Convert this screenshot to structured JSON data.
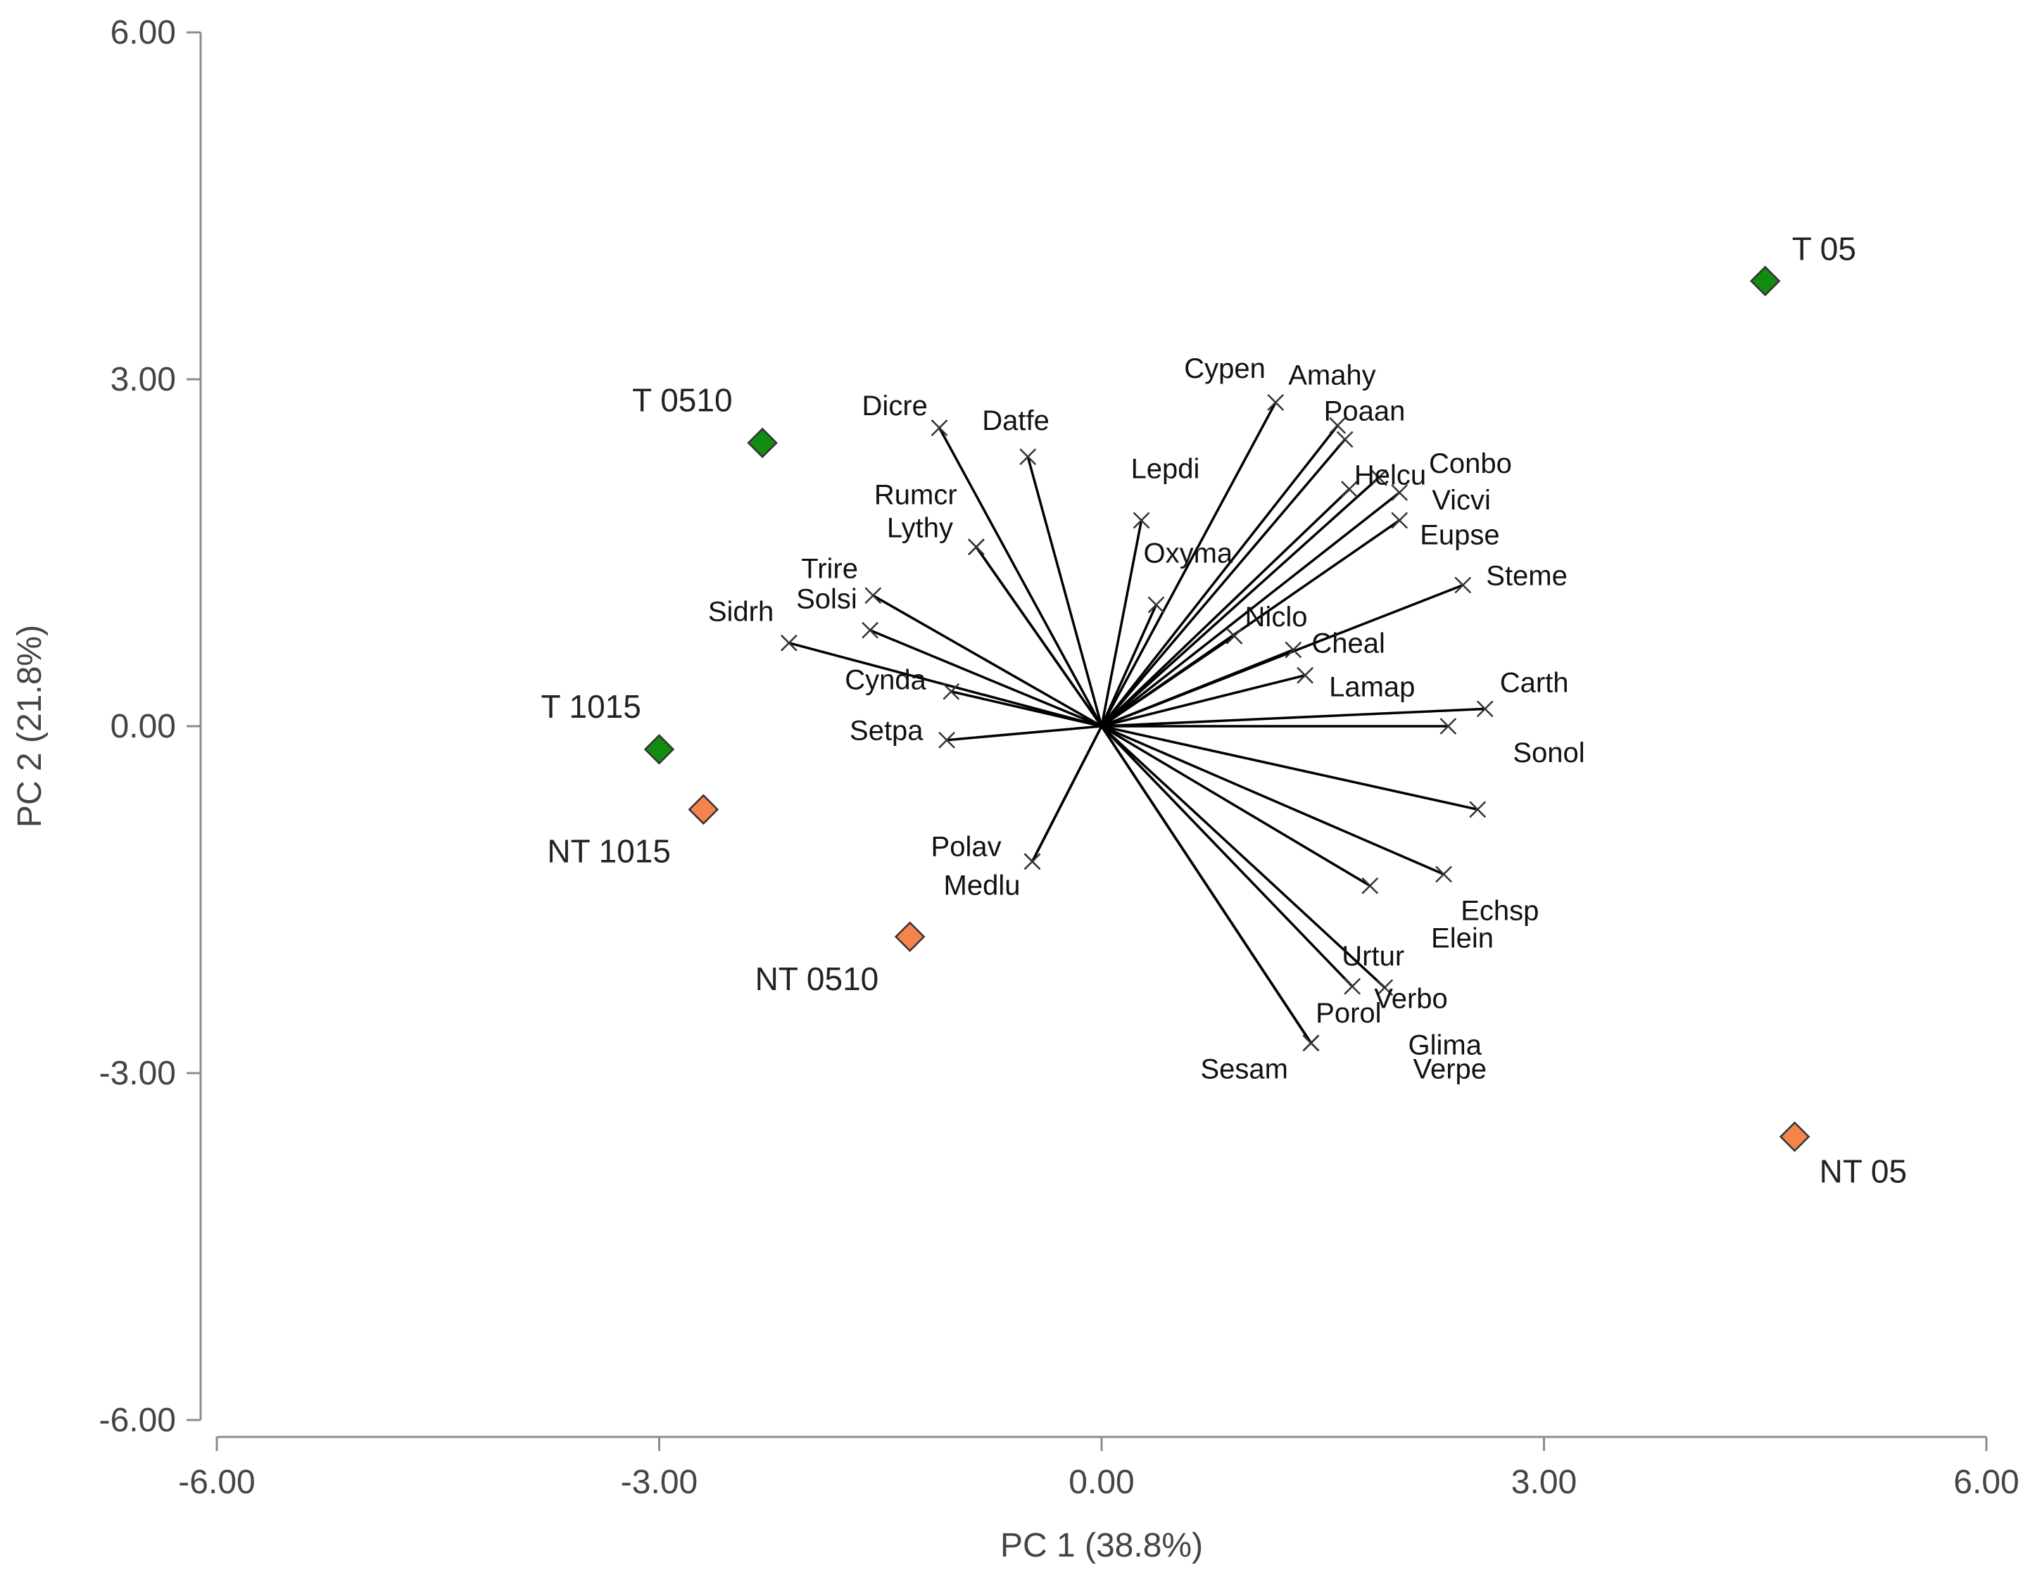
{
  "chart_data": {
    "type": "scatter",
    "subtype": "pca-biplot",
    "xlabel": "PC 1 (38.8%)",
    "ylabel": "PC 2 (21.8%)",
    "xlim": [
      -6,
      6
    ],
    "ylim": [
      -6,
      6
    ],
    "xticks": [
      "-6.00",
      "-3.00",
      "0.00",
      "3.00",
      "6.00"
    ],
    "yticks": [
      "-6.00",
      "-3.00",
      "0.00",
      "3.00",
      "6.00"
    ],
    "grid": false,
    "colors": {
      "T": "#118c11",
      "NT": "#f5844c",
      "vector": "#000000",
      "axis": "#8c8c8c"
    },
    "sites": [
      {
        "name": "T 05",
        "group": "T",
        "x": 4.5,
        "y": 3.85
      },
      {
        "name": "T 0510",
        "group": "T",
        "x": -2.3,
        "y": 2.45
      },
      {
        "name": "T 1015",
        "group": "T",
        "x": -3.0,
        "y": -0.2
      },
      {
        "name": "NT 1015",
        "group": "NT",
        "x": -2.7,
        "y": -0.72
      },
      {
        "name": "NT 0510",
        "group": "NT",
        "x": -1.3,
        "y": -1.82
      },
      {
        "name": "NT 05",
        "group": "NT",
        "x": 4.7,
        "y": -3.55
      }
    ],
    "variables": [
      {
        "name": "Cypen",
        "x": 1.18,
        "y": 2.8
      },
      {
        "name": "Amahy",
        "x": 1.6,
        "y": 2.6
      },
      {
        "name": "Poaan",
        "x": 1.65,
        "y": 2.48
      },
      {
        "name": "Helcu",
        "x": 1.88,
        "y": 2.15
      },
      {
        "name": "Conbo",
        "x": 1.68,
        "y": 2.05
      },
      {
        "name": "Vicvi",
        "x": 2.02,
        "y": 2.02
      },
      {
        "name": "Eupse",
        "x": 2.02,
        "y": 1.78
      },
      {
        "name": "Steme",
        "x": 2.45,
        "y": 1.22
      },
      {
        "name": "Niclo",
        "x": 0.9,
        "y": 0.78
      },
      {
        "name": "Cheal",
        "x": 1.3,
        "y": 0.66
      },
      {
        "name": "Lamap",
        "x": 1.38,
        "y": 0.44
      },
      {
        "name": "Carth",
        "x": 2.6,
        "y": 0.15
      },
      {
        "name": "Sonol",
        "x": 2.35,
        "y": 0.0
      },
      {
        "name": "Echsp",
        "x": 2.55,
        "y": -0.72
      },
      {
        "name": "Elein",
        "x": 2.32,
        "y": -1.28
      },
      {
        "name": "Urtur",
        "x": 1.82,
        "y": -1.38
      },
      {
        "name": "Verbo",
        "x": 1.92,
        "y": -2.26
      },
      {
        "name": "Porol",
        "x": 1.7,
        "y": -2.25
      },
      {
        "name": "Glima",
        "x": 1.42,
        "y": -2.74
      },
      {
        "name": "Verpe",
        "x": 1.42,
        "y": -2.74
      },
      {
        "name": "Sesam",
        "x": 1.42,
        "y": -2.74
      },
      {
        "name": "Lepdi",
        "x": 0.27,
        "y": 1.78
      },
      {
        "name": "Oxyma",
        "x": 0.37,
        "y": 1.05
      },
      {
        "name": "Datfe",
        "x": -0.5,
        "y": 2.33
      },
      {
        "name": "Dicre",
        "x": -1.1,
        "y": 2.58
      },
      {
        "name": "Rumcr",
        "x": -0.85,
        "y": 1.55
      },
      {
        "name": "Lythy",
        "x": -0.85,
        "y": 1.55
      },
      {
        "name": "Trire",
        "x": -1.55,
        "y": 1.13
      },
      {
        "name": "Solsi",
        "x": -1.57,
        "y": 0.83
      },
      {
        "name": "Sidrh",
        "x": -2.12,
        "y": 0.72
      },
      {
        "name": "Cynda",
        "x": -1.02,
        "y": 0.3
      },
      {
        "name": "Setpa",
        "x": -1.05,
        "y": -0.12
      },
      {
        "name": "Polav",
        "x": -0.47,
        "y": -1.17
      },
      {
        "name": "Medlu",
        "x": -0.47,
        "y": -1.17
      }
    ]
  }
}
